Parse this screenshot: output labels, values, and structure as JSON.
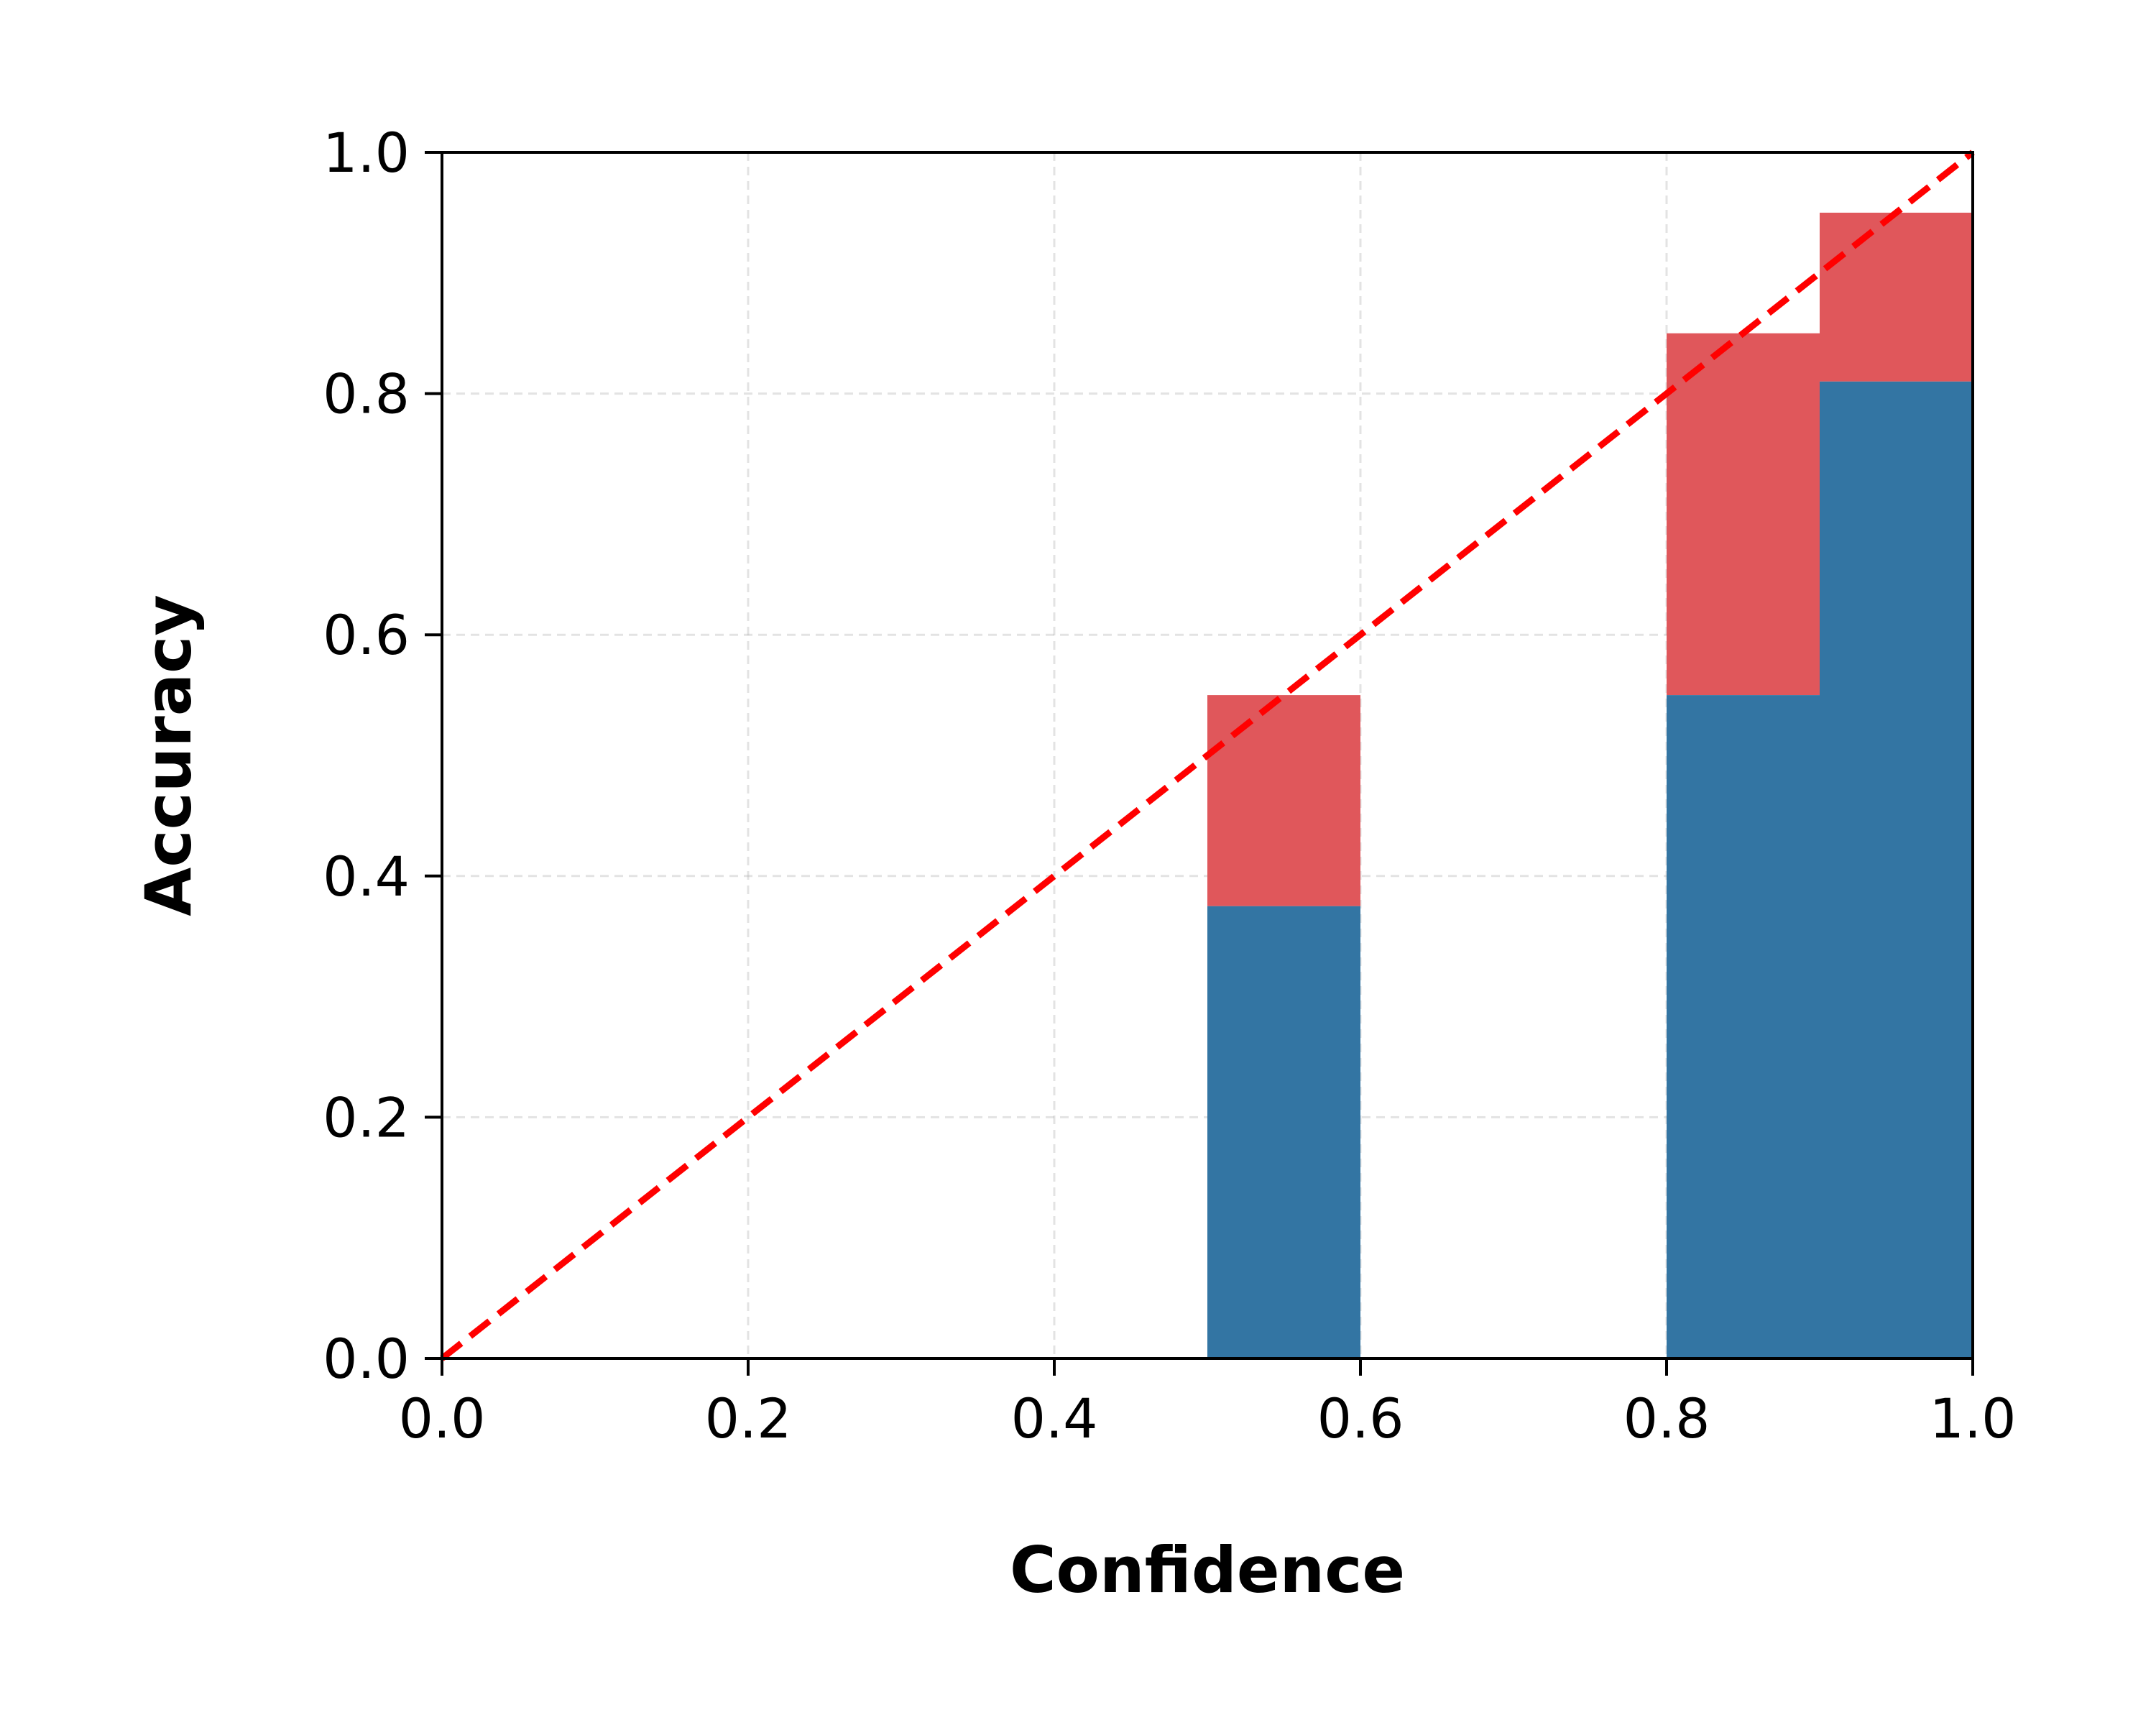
{
  "chart_data": {
    "type": "bar",
    "xlabel": "Confidence",
    "ylabel": "Accuracy",
    "xlim": [
      0.0,
      1.0
    ],
    "ylim": [
      0.0,
      1.0
    ],
    "x_ticks": [
      "0.0",
      "0.2",
      "0.4",
      "0.6",
      "0.8",
      "1.0"
    ],
    "y_ticks": [
      "0.0",
      "0.2",
      "0.4",
      "0.6",
      "0.8",
      "1.0"
    ],
    "grid": true,
    "bins": [
      {
        "x_start": 0.5,
        "x_end": 0.6,
        "accuracy": 0.375,
        "gap_top": 0.55
      },
      {
        "x_start": 0.8,
        "x_end": 0.9,
        "accuracy": 0.55,
        "gap_top": 0.85
      },
      {
        "x_start": 0.9,
        "x_end": 1.0,
        "accuracy": 0.81,
        "gap_top": 0.95
      }
    ],
    "reference_line": {
      "x": [
        0.0,
        1.0
      ],
      "y": [
        0.0,
        1.0
      ],
      "style": "dashed"
    },
    "colors": {
      "accuracy_bar": "#3375a3",
      "gap_bar": "#e0575b",
      "reference_line": "#ff0000"
    }
  }
}
